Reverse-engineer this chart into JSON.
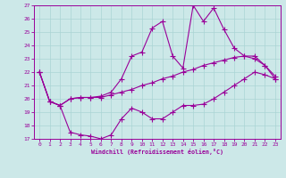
{
  "xlabel": "Windchill (Refroidissement éolien,°C)",
  "bg_color": "#cce8e8",
  "line_color": "#990099",
  "ylim": [
    17,
    27
  ],
  "xlim": [
    -0.5,
    23.5
  ],
  "yticks": [
    17,
    18,
    19,
    20,
    21,
    22,
    23,
    24,
    25,
    26,
    27
  ],
  "xticks": [
    0,
    1,
    2,
    3,
    4,
    5,
    6,
    7,
    8,
    9,
    10,
    11,
    12,
    13,
    14,
    15,
    16,
    17,
    18,
    19,
    20,
    21,
    22,
    23
  ],
  "line1_x": [
    0,
    1,
    2,
    3,
    4,
    5,
    6,
    7,
    8,
    9,
    10,
    11,
    12,
    13,
    14,
    15,
    16,
    17,
    18,
    19,
    20,
    21,
    22,
    23
  ],
  "line1_y": [
    22.0,
    19.8,
    19.5,
    17.5,
    17.3,
    17.2,
    17.0,
    17.3,
    18.5,
    19.3,
    19.0,
    18.5,
    18.5,
    19.0,
    19.5,
    19.5,
    19.6,
    20.0,
    20.5,
    21.0,
    21.5,
    22.0,
    21.8,
    21.5
  ],
  "line2_x": [
    0,
    1,
    2,
    3,
    4,
    5,
    6,
    7,
    8,
    9,
    10,
    11,
    12,
    13,
    14,
    15,
    16,
    17,
    18,
    19,
    20,
    21,
    22,
    23
  ],
  "line2_y": [
    22.0,
    19.8,
    19.5,
    20.0,
    20.1,
    20.1,
    20.1,
    20.3,
    20.5,
    20.7,
    21.0,
    21.2,
    21.5,
    21.7,
    22.0,
    22.2,
    22.5,
    22.7,
    22.9,
    23.1,
    23.2,
    23.2,
    22.5,
    21.5
  ],
  "line3_x": [
    0,
    1,
    2,
    3,
    4,
    5,
    6,
    7,
    8,
    9,
    10,
    11,
    12,
    13,
    14,
    15,
    16,
    17,
    18,
    19,
    20,
    21,
    22,
    23
  ],
  "line3_y": [
    22.0,
    19.8,
    19.5,
    20.0,
    20.1,
    20.1,
    20.2,
    20.5,
    21.5,
    23.2,
    23.5,
    25.3,
    25.8,
    23.2,
    22.3,
    27.0,
    25.8,
    26.8,
    25.2,
    23.8,
    23.2,
    23.0,
    22.5,
    21.7
  ],
  "grid_color": "#aad4d4",
  "marker": "+",
  "marker_size": 4,
  "linewidth": 0.8
}
